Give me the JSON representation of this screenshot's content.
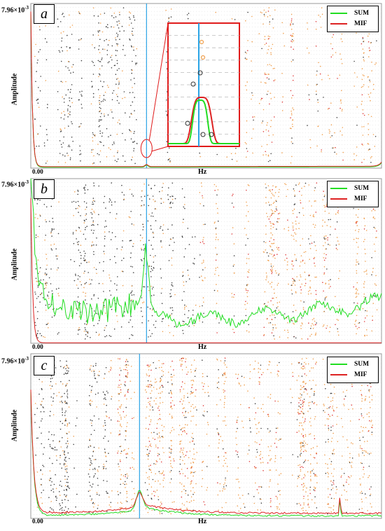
{
  "colors": {
    "sum": "#22dd22",
    "mif": "#dd2222",
    "cursor": "#2aa4e6",
    "dot_black": "#444444",
    "dot_orange": "#f0a050",
    "dot_red": "#e04040",
    "grid": "#d9d9d9"
  },
  "panels": [
    {
      "letter": "a",
      "ylabel_top": "7.96×10",
      "ylabel_exp": "-3",
      "ylabel": "Amplitude",
      "x_start": "0.00",
      "xlabel": "Hz",
      "legend": [
        "SUM",
        "MIF"
      ]
    },
    {
      "letter": "b",
      "ylabel_top": "7.96×10",
      "ylabel_exp": "-3",
      "ylabel": "Amplitude",
      "x_start": "0.00",
      "xlabel": "Hz",
      "legend": [
        "SUM",
        "MIF"
      ]
    },
    {
      "letter": "c",
      "ylabel_top": "7.96×10",
      "ylabel_exp": "-3",
      "ylabel": "Amplitude",
      "x_start": "0.00",
      "xlabel": "Hz",
      "legend": [
        "SUM",
        "MIF"
      ]
    }
  ],
  "chart_data": [
    {
      "type": "line",
      "title": "",
      "xlabel": "Hz",
      "ylabel": "Amplitude",
      "ylim": [
        0,
        0.00796
      ],
      "x_range": [
        0,
        1
      ],
      "peak_x": [
        0.33
      ],
      "inset": true,
      "series": [
        {
          "name": "SUM",
          "shape": "low baseline, sharp spike near 0, small peak at the cursor line",
          "peak_value": 0.0001
        },
        {
          "name": "MIF",
          "shape": "low baseline, sharp spike near 0, small peak at the cursor line",
          "peak_value": 0.0001
        }
      ]
    },
    {
      "type": "line",
      "title": "",
      "xlabel": "Hz",
      "ylabel": "Amplitude",
      "ylim": [
        0,
        0.00796
      ],
      "x_range": [
        0,
        1
      ],
      "peak_x": [
        0.33
      ],
      "series": [
        {
          "name": "SUM",
          "shape": "noisy broad curve, dip around 0.2 then peak at the cursor, rising toward the right end",
          "peak_value": 0.0045
        },
        {
          "name": "MIF",
          "shape": "flat near zero with spike near 0",
          "peak_value": 2e-05
        }
      ]
    },
    {
      "type": "line",
      "title": "",
      "xlabel": "Hz",
      "ylabel": "Amplitude",
      "ylim": [
        0,
        0.00796
      ],
      "x_range": [
        0,
        1
      ],
      "peak_x": [
        0.31
      ],
      "series": [
        {
          "name": "SUM",
          "shape": "low baseline, spike near 0, peak at cursor, small spike at 0.88",
          "peak_value": 0.0012
        },
        {
          "name": "MIF",
          "shape": "low baseline slightly above SUM, spike near 0, small spike at 0.88",
          "peak_value": 0.001
        }
      ]
    }
  ]
}
